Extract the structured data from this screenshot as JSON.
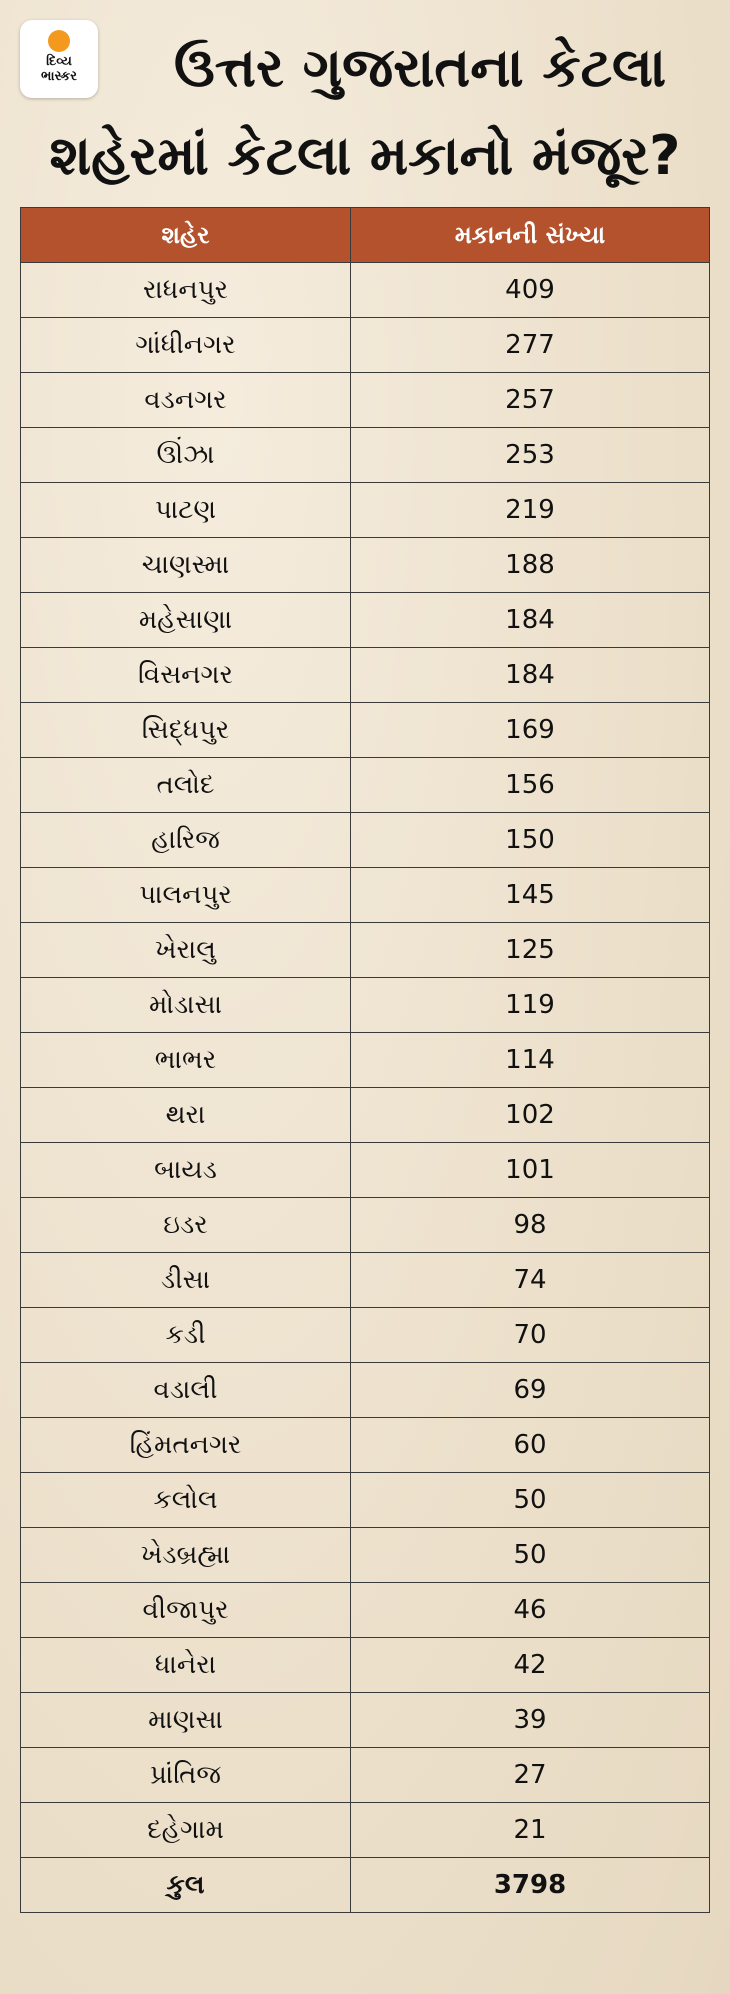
{
  "logo": {
    "line1": "દિવ્ય",
    "line2": "ભાસ્કર"
  },
  "title": {
    "line1": "ઉત્તર ગુજરાતના કેટલા",
    "line2": "શહેરમાં કેટલા મકાનો મંજૂર?"
  },
  "colors": {
    "header": "#b4522d",
    "background": "#efe4d2"
  },
  "table": {
    "headers": [
      "શહેર",
      "મકાનની સંખ્યા"
    ],
    "rows": [
      {
        "city": "રાધનપુર",
        "count": "409"
      },
      {
        "city": "ગાંધીનગર",
        "count": "277"
      },
      {
        "city": "વડનગર",
        "count": "257"
      },
      {
        "city": "ઊંઝા",
        "count": "253"
      },
      {
        "city": "પાટણ",
        "count": "219"
      },
      {
        "city": "ચાણસ્મા",
        "count": "188"
      },
      {
        "city": "મહેસાણા",
        "count": "184"
      },
      {
        "city": "વિસનગર",
        "count": "184"
      },
      {
        "city": "સિદ્ધપુર",
        "count": "169"
      },
      {
        "city": "તલોદ",
        "count": "156"
      },
      {
        "city": "હારિજ",
        "count": "150"
      },
      {
        "city": "પાલનપુર",
        "count": "145"
      },
      {
        "city": "ખેરાલુ",
        "count": "125"
      },
      {
        "city": "મોડાસા",
        "count": "119"
      },
      {
        "city": "ભાભર",
        "count": "114"
      },
      {
        "city": "થરા",
        "count": "102"
      },
      {
        "city": "બાયડ",
        "count": "101"
      },
      {
        "city": "ઇડર",
        "count": "98"
      },
      {
        "city": "ડીસા",
        "count": "74"
      },
      {
        "city": "કડી",
        "count": "70"
      },
      {
        "city": "વડાલી",
        "count": "69"
      },
      {
        "city": "હિંમતનગર",
        "count": "60"
      },
      {
        "city": "કલોલ",
        "count": "50"
      },
      {
        "city": "ખેડબ્રહ્મા",
        "count": "50"
      },
      {
        "city": "વીજાપુર",
        "count": "46"
      },
      {
        "city": "ધાનેરા",
        "count": "42"
      },
      {
        "city": "માણસા",
        "count": "39"
      },
      {
        "city": "પ્રાંતિજ",
        "count": "27"
      },
      {
        "city": "દહેગામ",
        "count": "21"
      }
    ],
    "total": {
      "label": "કુલ",
      "count": "3798"
    }
  }
}
